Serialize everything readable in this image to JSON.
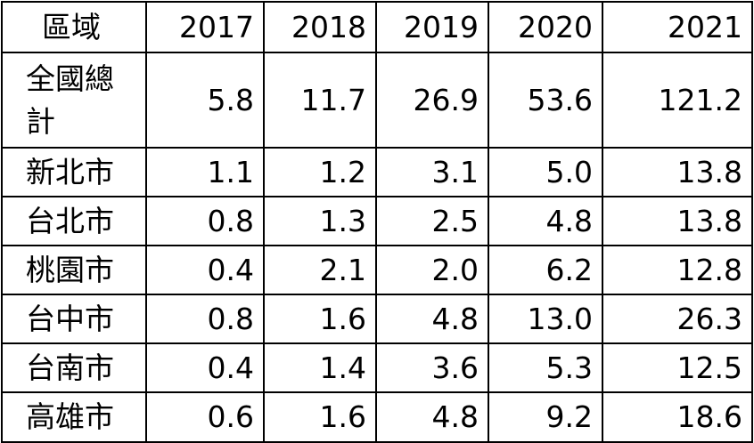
{
  "header": {
    "region_label": "區域",
    "years": [
      "2017",
      "2018",
      "2019",
      "2020",
      "2021"
    ]
  },
  "rows": [
    {
      "region": "全國總計",
      "values": [
        "5.8",
        "11.7",
        "26.9",
        "53.6",
        "121.2"
      ]
    },
    {
      "region": "新北市",
      "values": [
        "1.1",
        "1.2",
        "3.1",
        "5.0",
        "13.8"
      ]
    },
    {
      "region": "台北市",
      "values": [
        "0.8",
        "1.3",
        "2.5",
        "4.8",
        "13.8"
      ]
    },
    {
      "region": "桃園市",
      "values": [
        "0.4",
        "2.1",
        "2.0",
        "6.2",
        "12.8"
      ]
    },
    {
      "region": "台中市",
      "values": [
        "0.8",
        "1.6",
        "4.8",
        "13.0",
        "26.3"
      ]
    },
    {
      "region": "台南市",
      "values": [
        "0.4",
        "1.4",
        "3.6",
        "5.3",
        "12.5"
      ]
    },
    {
      "region": "高雄市",
      "values": [
        "0.6",
        "1.6",
        "4.8",
        "9.2",
        "18.6"
      ]
    }
  ]
}
